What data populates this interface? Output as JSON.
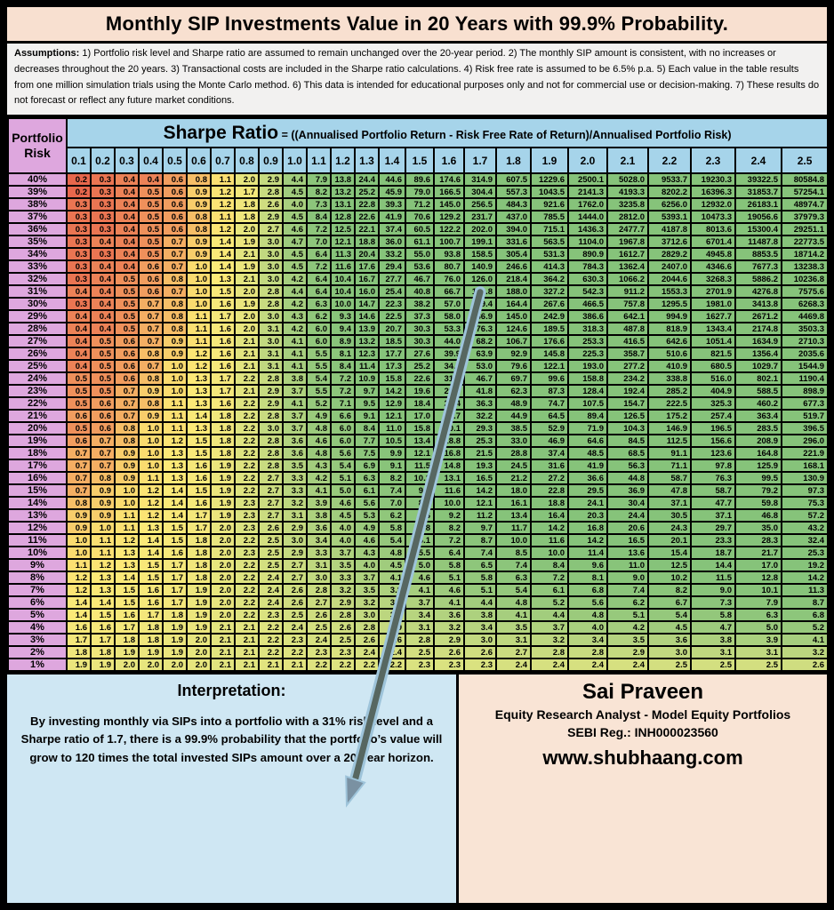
{
  "title": "Monthly SIP Investments Value in 20 Years with 99.9% Probability.",
  "assumptions": {
    "label": "Assumptions:",
    "text": " 1) Portfolio risk level and Sharpe ratio are assumed to remain unchanged over the 20-year period. 2) The monthly SIP amount is consistent, with no increases or decreases throughout the 20 years. 3) Transactional costs are included in the Sharpe ratio calculations. 4) Risk free rate is assumed to be 6.5% p.a. 5) Each value in the table results from one million simulation trials using the Monte Carlo method. 6) This data is intended for educational purposes only and not for commercial use or decision-making. 7) These results do not forecast or reflect any future market conditions."
  },
  "table": {
    "risk_header_line1": "Portfolio",
    "risk_header_line2": "Risk",
    "sharpe_title": "Sharpe Ratio",
    "sharpe_formula": " = ((Annualised Portfolio Return - Risk Free Rate of Return)/Annualised Portfolio Risk)"
  },
  "chart_data": {
    "type": "heatmap",
    "title": "Monthly SIP Investments Value in 20 Years with 99.9% Probability.",
    "xlabel": "Sharpe Ratio",
    "ylabel": "Portfolio Risk",
    "columns": [
      "0.1",
      "0.2",
      "0.3",
      "0.4",
      "0.5",
      "0.6",
      "0.7",
      "0.8",
      "0.9",
      "1.0",
      "1.1",
      "1.2",
      "1.3",
      "1.4",
      "1.5",
      "1.6",
      "1.7",
      "1.8",
      "1.9",
      "2.0",
      "2.1",
      "2.2",
      "2.3",
      "2.4",
      "2.5"
    ],
    "rows": [
      "40%",
      "39%",
      "38%",
      "37%",
      "36%",
      "35%",
      "34%",
      "33%",
      "32%",
      "31%",
      "30%",
      "29%",
      "28%",
      "27%",
      "26%",
      "25%",
      "24%",
      "23%",
      "22%",
      "21%",
      "20%",
      "19%",
      "18%",
      "17%",
      "16%",
      "15%",
      "14%",
      "13%",
      "12%",
      "11%",
      "10%",
      "9%",
      "8%",
      "7%",
      "6%",
      "5%",
      "4%",
      "3%",
      "2%",
      "1%"
    ],
    "values": [
      [
        0.2,
        0.3,
        0.4,
        0.4,
        0.6,
        0.8,
        1.1,
        2.0,
        2.9,
        4.4,
        7.9,
        13.8,
        24.4,
        44.6,
        89.6,
        174.6,
        314.9,
        607.5,
        1229.6,
        2500.1,
        5028.0,
        9533.7,
        19230.3,
        39322.5,
        80584.8
      ],
      [
        0.2,
        0.3,
        0.4,
        0.5,
        0.6,
        0.9,
        1.2,
        1.7,
        2.8,
        4.5,
        8.2,
        13.2,
        25.2,
        45.9,
        79.0,
        166.5,
        304.4,
        557.3,
        1043.5,
        2141.3,
        4193.3,
        8202.2,
        16396.3,
        31853.7,
        57254.1
      ],
      [
        0.3,
        0.3,
        0.4,
        0.5,
        0.6,
        0.9,
        1.2,
        1.8,
        2.6,
        4.0,
        7.3,
        13.1,
        22.8,
        39.3,
        71.2,
        145.0,
        256.5,
        484.3,
        921.6,
        1762.0,
        3235.8,
        6256.0,
        12932.0,
        26183.1,
        48974.7
      ],
      [
        0.3,
        0.3,
        0.4,
        0.5,
        0.6,
        0.8,
        1.1,
        1.8,
        2.9,
        4.5,
        8.4,
        12.8,
        22.6,
        41.9,
        70.6,
        129.2,
        231.7,
        437.0,
        785.5,
        1444.0,
        2812.0,
        5393.1,
        10473.3,
        19056.6,
        37979.3
      ],
      [
        0.3,
        0.3,
        0.4,
        0.5,
        0.6,
        0.8,
        1.2,
        2.0,
        2.7,
        4.6,
        7.2,
        12.5,
        22.1,
        37.4,
        60.5,
        122.2,
        202.0,
        394.0,
        715.1,
        1436.3,
        2477.7,
        4187.8,
        8013.6,
        15300.4,
        29251.1
      ],
      [
        0.3,
        0.4,
        0.4,
        0.5,
        0.7,
        0.9,
        1.4,
        1.9,
        3.0,
        4.7,
        7.0,
        12.1,
        18.8,
        36.0,
        61.1,
        100.7,
        199.1,
        331.6,
        563.5,
        1104.0,
        1967.8,
        3712.6,
        6701.4,
        11487.8,
        22773.5
      ],
      [
        0.3,
        0.3,
        0.4,
        0.5,
        0.7,
        0.9,
        1.4,
        2.1,
        3.0,
        4.5,
        6.4,
        11.3,
        20.4,
        33.2,
        55.0,
        93.8,
        158.5,
        305.4,
        531.3,
        890.9,
        1612.7,
        2829.2,
        4945.8,
        8853.5,
        18714.2
      ],
      [
        0.3,
        0.4,
        0.4,
        0.6,
        0.7,
        1.0,
        1.4,
        1.9,
        3.0,
        4.5,
        7.2,
        11.6,
        17.6,
        29.4,
        53.6,
        80.7,
        140.9,
        246.6,
        414.3,
        784.3,
        1362.4,
        2407.0,
        4346.6,
        7677.3,
        13238.3
      ],
      [
        0.3,
        0.4,
        0.5,
        0.6,
        0.8,
        1.0,
        1.3,
        2.1,
        3.0,
        4.2,
        6.4,
        10.4,
        16.7,
        27.7,
        46.7,
        76.0,
        126.0,
        218.4,
        364.2,
        630.3,
        1066.2,
        2044.6,
        3268.3,
        5886.2,
        10236.8
      ],
      [
        0.4,
        0.4,
        0.5,
        0.6,
        0.7,
        1.0,
        1.5,
        2.0,
        2.8,
        4.4,
        6.4,
        10.4,
        16.0,
        25.4,
        40.8,
        66.7,
        119.8,
        188.0,
        327.2,
        542.3,
        911.2,
        1553.3,
        2701.9,
        4276.8,
        7575.6
      ],
      [
        0.3,
        0.4,
        0.5,
        0.7,
        0.8,
        1.0,
        1.6,
        1.9,
        2.8,
        4.2,
        6.3,
        10.0,
        14.7,
        22.3,
        38.2,
        57.0,
        109.4,
        164.4,
        267.6,
        466.5,
        757.8,
        1295.5,
        1981.0,
        3413.8,
        6268.3
      ],
      [
        0.4,
        0.4,
        0.5,
        0.7,
        0.8,
        1.1,
        1.7,
        2.0,
        3.0,
        4.3,
        6.2,
        9.3,
        14.6,
        22.5,
        37.3,
        58.0,
        86.9,
        145.0,
        242.9,
        386.6,
        642.1,
        994.9,
        1627.7,
        2671.2,
        4469.8
      ],
      [
        0.4,
        0.4,
        0.5,
        0.7,
        0.8,
        1.1,
        1.6,
        2.0,
        3.1,
        4.2,
        6.0,
        9.4,
        13.9,
        20.7,
        30.3,
        53.3,
        76.3,
        124.6,
        189.5,
        318.3,
        487.8,
        818.9,
        1343.4,
        2174.8,
        3503.3
      ],
      [
        0.4,
        0.5,
        0.6,
        0.7,
        0.9,
        1.1,
        1.6,
        2.1,
        3.0,
        4.1,
        6.0,
        8.9,
        13.2,
        18.5,
        30.3,
        44.0,
        68.2,
        106.7,
        176.6,
        253.3,
        416.5,
        642.6,
        1051.4,
        1634.9,
        2710.3
      ],
      [
        0.4,
        0.5,
        0.6,
        0.8,
        0.9,
        1.2,
        1.6,
        2.1,
        3.1,
        4.1,
        5.5,
        8.1,
        12.3,
        17.7,
        27.6,
        39.9,
        63.9,
        92.9,
        145.8,
        225.3,
        358.7,
        510.6,
        821.5,
        1356.4,
        2035.6
      ],
      [
        0.4,
        0.5,
        0.6,
        0.7,
        1.0,
        1.2,
        1.6,
        2.1,
        3.1,
        4.1,
        5.5,
        8.4,
        11.4,
        17.3,
        25.2,
        34.7,
        53.0,
        79.6,
        122.1,
        193.0,
        277.2,
        410.9,
        680.5,
        1029.7,
        1544.9
      ],
      [
        0.5,
        0.5,
        0.6,
        0.8,
        1.0,
        1.3,
        1.7,
        2.2,
        2.8,
        3.8,
        5.4,
        7.2,
        10.9,
        15.8,
        22.6,
        31.6,
        46.7,
        69.7,
        99.6,
        158.8,
        234.2,
        338.8,
        516.0,
        802.1,
        1190.4
      ],
      [
        0.5,
        0.5,
        0.7,
        0.9,
        1.0,
        1.3,
        1.7,
        2.1,
        2.9,
        3.7,
        5.5,
        7.2,
        9.7,
        14.2,
        19.6,
        29.0,
        41.8,
        62.3,
        87.3,
        128.4,
        192.4,
        285.2,
        404.9,
        588.5,
        898.9
      ],
      [
        0.5,
        0.6,
        0.7,
        0.8,
        1.1,
        1.3,
        1.6,
        2.2,
        2.9,
        4.1,
        5.2,
        7.1,
        9.5,
        12.9,
        18.4,
        25.4,
        36.3,
        48.9,
        74.7,
        107.5,
        154.7,
        222.5,
        325.3,
        460.2,
        677.3
      ],
      [
        0.6,
        0.6,
        0.7,
        0.9,
        1.1,
        1.4,
        1.8,
        2.2,
        2.8,
        3.7,
        4.9,
        6.6,
        9.1,
        12.1,
        17.0,
        22.7,
        32.2,
        44.9,
        64.5,
        89.4,
        126.5,
        175.2,
        257.4,
        363.4,
        519.7
      ],
      [
        0.5,
        0.6,
        0.8,
        1.0,
        1.1,
        1.3,
        1.8,
        2.2,
        3.0,
        3.7,
        4.8,
        6.0,
        8.4,
        11.0,
        15.8,
        20.1,
        29.3,
        38.5,
        52.9,
        71.9,
        104.3,
        146.9,
        196.5,
        283.5,
        396.5
      ],
      [
        0.6,
        0.7,
        0.8,
        1.0,
        1.2,
        1.5,
        1.8,
        2.2,
        2.8,
        3.6,
        4.6,
        6.0,
        7.7,
        10.5,
        13.4,
        18.8,
        25.3,
        33.0,
        46.9,
        64.6,
        84.5,
        112.5,
        156.6,
        208.9,
        296.0
      ],
      [
        0.7,
        0.7,
        0.9,
        1.0,
        1.3,
        1.5,
        1.8,
        2.2,
        2.8,
        3.6,
        4.8,
        5.6,
        7.5,
        9.9,
        12.1,
        16.8,
        21.5,
        28.8,
        37.4,
        48.5,
        68.5,
        91.1,
        123.6,
        164.8,
        221.9
      ],
      [
        0.7,
        0.7,
        0.9,
        1.0,
        1.3,
        1.6,
        1.9,
        2.2,
        2.8,
        3.5,
        4.3,
        5.4,
        6.9,
        9.1,
        11.5,
        14.8,
        19.3,
        24.5,
        31.6,
        41.9,
        56.3,
        71.1,
        97.8,
        125.9,
        168.1
      ],
      [
        0.7,
        0.8,
        0.9,
        1.1,
        1.3,
        1.6,
        1.9,
        2.2,
        2.7,
        3.3,
        4.2,
        5.1,
        6.3,
        8.2,
        10.2,
        13.1,
        16.5,
        21.2,
        27.2,
        36.6,
        44.8,
        58.7,
        76.3,
        99.5,
        130.9
      ],
      [
        0.7,
        0.9,
        1.0,
        1.2,
        1.4,
        1.5,
        1.9,
        2.2,
        2.7,
        3.3,
        4.1,
        5.0,
        6.1,
        7.4,
        9.4,
        11.6,
        14.2,
        18.0,
        22.8,
        29.5,
        36.9,
        47.8,
        58.7,
        79.2,
        97.3
      ],
      [
        0.8,
        0.9,
        1.0,
        1.2,
        1.4,
        1.6,
        1.9,
        2.3,
        2.7,
        3.2,
        3.9,
        4.6,
        5.6,
        7.0,
        8.5,
        10.0,
        12.1,
        16.1,
        18.8,
        24.1,
        30.4,
        37.1,
        47.7,
        59.8,
        75.3
      ],
      [
        0.9,
        0.9,
        1.1,
        1.2,
        1.4,
        1.7,
        1.9,
        2.3,
        2.7,
        3.1,
        3.8,
        4.5,
        5.3,
        6.2,
        7.6,
        9.2,
        11.2,
        13.4,
        16.4,
        20.3,
        24.4,
        30.5,
        37.1,
        46.8,
        57.2
      ],
      [
        0.9,
        1.0,
        1.1,
        1.3,
        1.5,
        1.7,
        2.0,
        2.3,
        2.6,
        2.9,
        3.6,
        4.0,
        4.9,
        5.8,
        6.8,
        8.2,
        9.7,
        11.7,
        14.2,
        16.8,
        20.6,
        24.3,
        29.7,
        35.0,
        43.2
      ],
      [
        1.0,
        1.1,
        1.2,
        1.4,
        1.5,
        1.8,
        2.0,
        2.2,
        2.5,
        3.0,
        3.4,
        4.0,
        4.6,
        5.4,
        6.1,
        7.2,
        8.7,
        10.0,
        11.6,
        14.2,
        16.5,
        20.1,
        23.3,
        28.3,
        32.4
      ],
      [
        1.0,
        1.1,
        1.3,
        1.4,
        1.6,
        1.8,
        2.0,
        2.3,
        2.5,
        2.9,
        3.3,
        3.7,
        4.3,
        4.8,
        5.5,
        6.4,
        7.4,
        8.5,
        10.0,
        11.4,
        13.6,
        15.4,
        18.7,
        21.7,
        25.3
      ],
      [
        1.1,
        1.2,
        1.3,
        1.5,
        1.7,
        1.8,
        2.0,
        2.2,
        2.5,
        2.7,
        3.1,
        3.5,
        4.0,
        4.5,
        5.0,
        5.8,
        6.5,
        7.4,
        8.4,
        9.6,
        11.0,
        12.5,
        14.4,
        17.0,
        19.2
      ],
      [
        1.2,
        1.3,
        1.4,
        1.5,
        1.7,
        1.8,
        2.0,
        2.2,
        2.4,
        2.7,
        3.0,
        3.3,
        3.7,
        4.1,
        4.6,
        5.1,
        5.8,
        6.3,
        7.2,
        8.1,
        9.0,
        10.2,
        11.5,
        12.8,
        14.2
      ],
      [
        1.2,
        1.3,
        1.5,
        1.6,
        1.7,
        1.9,
        2.0,
        2.2,
        2.4,
        2.6,
        2.8,
        3.2,
        3.5,
        3.8,
        4.1,
        4.6,
        5.1,
        5.4,
        6.1,
        6.8,
        7.4,
        8.2,
        9.0,
        10.1,
        11.3
      ],
      [
        1.4,
        1.4,
        1.5,
        1.6,
        1.7,
        1.9,
        2.0,
        2.2,
        2.4,
        2.6,
        2.7,
        2.9,
        3.2,
        3.4,
        3.7,
        4.1,
        4.4,
        4.8,
        5.2,
        5.6,
        6.2,
        6.7,
        7.3,
        7.9,
        8.7
      ],
      [
        1.4,
        1.5,
        1.6,
        1.7,
        1.8,
        1.9,
        2.0,
        2.2,
        2.3,
        2.5,
        2.6,
        2.8,
        3.0,
        3.2,
        3.4,
        3.6,
        3.8,
        4.1,
        4.4,
        4.8,
        5.1,
        5.4,
        5.8,
        6.3,
        6.8
      ],
      [
        1.6,
        1.6,
        1.7,
        1.8,
        1.9,
        1.9,
        2.1,
        2.1,
        2.2,
        2.4,
        2.5,
        2.6,
        2.8,
        2.9,
        3.1,
        3.2,
        3.4,
        3.5,
        3.7,
        4.0,
        4.2,
        4.5,
        4.7,
        5.0,
        5.2
      ],
      [
        1.7,
        1.7,
        1.8,
        1.8,
        1.9,
        2.0,
        2.1,
        2.1,
        2.2,
        2.3,
        2.4,
        2.5,
        2.6,
        2.6,
        2.8,
        2.9,
        3.0,
        3.1,
        3.2,
        3.4,
        3.5,
        3.6,
        3.8,
        3.9,
        4.1
      ],
      [
        1.8,
        1.8,
        1.9,
        1.9,
        1.9,
        2.0,
        2.1,
        2.1,
        2.2,
        2.2,
        2.3,
        2.3,
        2.4,
        2.4,
        2.5,
        2.6,
        2.6,
        2.7,
        2.8,
        2.8,
        2.9,
        3.0,
        3.1,
        3.1,
        3.2
      ],
      [
        1.9,
        1.9,
        2.0,
        2.0,
        2.0,
        2.0,
        2.1,
        2.1,
        2.1,
        2.1,
        2.2,
        2.2,
        2.2,
        2.2,
        2.3,
        2.3,
        2.3,
        2.4,
        2.4,
        2.4,
        2.4,
        2.5,
        2.5,
        2.5,
        2.6
      ]
    ],
    "highlighted_cell": {
      "row": "31%",
      "column": "1.7",
      "value": 119.8
    },
    "color_scale": {
      "low": "#E7674C",
      "mid": "#FCE876",
      "high": "#86C37A"
    },
    "legend_position": "none",
    "grid": true
  },
  "interpretation": {
    "title": "Interpretation:",
    "text": "By investing monthly via SIPs into a portfolio with a 31% risk level and a Sharpe ratio of 1.7, there is a 99.9% probability that the portfolio’s value will grow to 120 times the total invested SIPs amount over a 20-year horizon."
  },
  "analyst": {
    "name": "Sai Praveen",
    "role": "Equity Research Analyst - Model Equity Portfolios",
    "sebi": "SEBI Reg.: INH000023560",
    "website": "www.shubhaang.com"
  },
  "colors": {
    "title_text": "#92381E",
    "title_bg": "#F8E0D0",
    "assumptions_bg": "#F2F1F0",
    "risk_column": "#DEA7DE",
    "sharpe_header": "#A6D4EA",
    "interpretation_bg": "#CFE7F3",
    "analyst_bg": "#F9E4D5",
    "arrow_outline": "#9EC4DA",
    "arrow_shaft": "#4E5B51",
    "arrow_head": "#7A91A2"
  }
}
